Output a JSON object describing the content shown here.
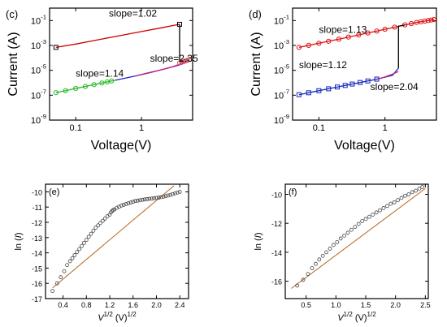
{
  "chart_data": [
    {
      "type": "line",
      "panel_label": "(c)",
      "xlabel": "Voltage(V)",
      "ylabel": "Current (A)",
      "xscale": "log",
      "yscale": "log",
      "xlim": [
        0.04,
        6
      ],
      "ylim": [
        1e-09,
        1
      ],
      "xticks": [
        0.1,
        1
      ],
      "xtick_labels": [
        "0.1",
        "1"
      ],
      "yticks": [
        1e-09,
        1e-07,
        1e-05,
        0.001,
        0.1
      ],
      "ytick_labels": [
        [
          "10",
          "-9"
        ],
        [
          "10",
          "-7"
        ],
        [
          "10",
          "-5"
        ],
        [
          "10",
          "-3"
        ],
        [
          "10",
          "-1"
        ]
      ],
      "annotations": [
        {
          "text": "slope=1.02",
          "x": 0.32,
          "y": 0.2
        },
        {
          "text": "slope=2.35",
          "x": 1.35,
          "y": 5e-05
        },
        {
          "text": "slope=1.14",
          "x": 0.1,
          "y": 3e-06
        }
      ],
      "series": [
        {
          "color": "#cc0000",
          "marker": "square",
          "markers_x": [
            0.05,
            3.8
          ],
          "x": [
            0.05,
            0.1,
            0.2,
            0.5,
            1,
            2,
            3.8
          ],
          "y": [
            0.0007,
            0.0013,
            0.0026,
            0.0065,
            0.013,
            0.026,
            0.05
          ]
        },
        {
          "color": "#000000",
          "marker": "none",
          "x": [
            3.8,
            3.8,
            4.4,
            5.0
          ],
          "y": [
            0.05,
            5e-05,
            7e-05,
            8e-05
          ]
        },
        {
          "color": "#22bb22",
          "marker": "circle",
          "markers_x": [
            0.05,
            0.07,
            0.1,
            0.14,
            0.19,
            0.25,
            0.3,
            0.35
          ],
          "x": [
            0.05,
            0.1,
            0.2,
            0.35,
            0.4
          ],
          "y": [
            1.6e-07,
            3.5e-07,
            7.5e-07,
            1.4e-06,
            1.6e-06
          ]
        },
        {
          "color": "#2222cc",
          "marker": "none",
          "x": [
            0.4,
            0.7,
            1,
            1.5,
            2,
            3,
            4,
            5.3
          ],
          "y": [
            1.6e-06,
            3e-06,
            4.5e-06,
            7.5e-06,
            1.1e-05,
            1.9e-05,
            3e-05,
            5e-05
          ]
        },
        {
          "color": "#cc2277",
          "marker": "none",
          "x": [
            0.8,
            1.2,
            2,
            3,
            4,
            5.3
          ],
          "y": [
            3.5e-06,
            6e-06,
            1.1e-05,
            2e-05,
            3.5e-05,
            6.5e-05
          ]
        },
        {
          "color": "#e06060",
          "marker": "circle",
          "markers_x": [
            3.8,
            4.2,
            4.6,
            5.0,
            5.4
          ],
          "x": [
            3.8,
            4.2,
            4.6,
            5.0,
            5.4
          ],
          "y": [
            4e-05,
            4.8e-05,
            5.6e-05,
            6.5e-05,
            7.5e-05
          ]
        }
      ]
    },
    {
      "type": "line",
      "panel_label": "(d)",
      "xlabel": "Voltage(V)",
      "ylabel": "Current (A)",
      "xscale": "log",
      "yscale": "log",
      "xlim": [
        0.04,
        6
      ],
      "ylim": [
        1e-09,
        1
      ],
      "xticks": [
        0.1,
        1
      ],
      "xtick_labels": [
        "0.1",
        "1"
      ],
      "yticks": [
        1e-09,
        1e-07,
        1e-05,
        0.001,
        0.1
      ],
      "ytick_labels": [
        [
          "10",
          "-9"
        ],
        [
          "10",
          "-7"
        ],
        [
          "10",
          "-5"
        ],
        [
          "10",
          "-3"
        ],
        [
          "10",
          "-1"
        ]
      ],
      "annotations": [
        {
          "text": "slope=1.13",
          "x": 0.1,
          "y": 0.01
        },
        {
          "text": "slope=1.12",
          "x": 0.05,
          "y": 1.5e-05
        },
        {
          "text": "slope=2.04",
          "x": 0.6,
          "y": 2.5e-07
        }
      ],
      "series": [
        {
          "color": "#dd1111",
          "marker": "circle",
          "markers_x": [
            0.05,
            0.07,
            0.1,
            0.14,
            0.2,
            0.28,
            0.4,
            0.55,
            0.75,
            1,
            1.4,
            2,
            2.5,
            3,
            3.5,
            4,
            4.5,
            5,
            5.5
          ],
          "x": [
            0.05,
            0.1,
            0.2,
            0.5,
            1,
            2,
            3,
            5.5
          ],
          "y": [
            0.0007,
            0.0015,
            0.0032,
            0.009,
            0.02,
            0.045,
            0.07,
            0.12
          ]
        },
        {
          "color": "#000000",
          "marker": "none",
          "x": [
            1.6,
            1.6,
            2.0
          ],
          "y": [
            1.5e-05,
            0.035,
            0.045
          ]
        },
        {
          "color": "#1122bb",
          "marker": "square",
          "markers_x": [
            0.05,
            0.07,
            0.1,
            0.14,
            0.19,
            0.25,
            0.32,
            0.42,
            0.55,
            0.75
          ],
          "x": [
            0.05,
            0.1,
            0.2,
            0.4,
            0.7,
            1,
            1.3,
            1.6
          ],
          "y": [
            1.1e-07,
            2.3e-07,
            4.8e-07,
            1e-06,
            1.8e-06,
            2.8e-06,
            4e-06,
            1.5e-05
          ]
        },
        {
          "color": "#cc2277",
          "marker": "none",
          "x": [
            0.8,
            1,
            1.3,
            1.6
          ],
          "y": [
            2e-06,
            3e-06,
            5e-06,
            8e-06
          ]
        }
      ]
    },
    {
      "type": "scatter",
      "panel_label": "(e)",
      "xlabel": [
        "V",
        "1/2",
        " (V)",
        "1/2"
      ],
      "ylabel": [
        "ln (",
        "I",
        ")"
      ],
      "xlim": [
        0.1,
        2.55
      ],
      "ylim": [
        -17,
        -9.5
      ],
      "xticks": [
        0.4,
        0.8,
        1.2,
        1.6,
        2.0,
        2.4
      ],
      "xtick_labels": [
        "0.4",
        "0.8",
        "1.2",
        "1.6",
        "2.0",
        "2.4"
      ],
      "yticks": [
        -17,
        -16,
        -15,
        -14,
        -13,
        -12,
        -11,
        -10
      ],
      "ytick_labels": [
        "-17",
        "-16",
        "-15",
        "-14",
        "-13",
        "-12",
        "-11",
        "-10"
      ],
      "fit_line": {
        "color": "#b5651d",
        "x": [
          0.22,
          2.3
        ],
        "y": [
          -16.3,
          -9.6
        ]
      },
      "points": {
        "x": [
          0.22,
          0.3,
          0.36,
          0.42,
          0.47,
          0.52,
          0.56,
          0.6,
          0.64,
          0.68,
          0.72,
          0.76,
          0.8,
          0.84,
          0.88,
          0.92,
          0.96,
          1.0,
          1.04,
          1.08,
          1.12,
          1.16,
          1.2,
          1.22,
          1.24,
          1.26,
          1.28,
          1.32,
          1.36,
          1.4,
          1.44,
          1.48,
          1.52,
          1.56,
          1.6,
          1.64,
          1.68,
          1.72,
          1.76,
          1.8,
          1.84,
          1.88,
          1.92,
          1.96,
          2.0,
          2.04,
          2.08,
          2.12,
          2.16,
          2.2,
          2.24,
          2.28,
          2.32,
          2.36,
          2.4
        ],
        "y": [
          -16.5,
          -16.0,
          -15.6,
          -15.2,
          -14.8,
          -14.55,
          -14.35,
          -14.15,
          -13.95,
          -13.75,
          -13.55,
          -13.35,
          -13.15,
          -12.95,
          -12.75,
          -12.55,
          -12.35,
          -12.2,
          -12.05,
          -11.9,
          -11.75,
          -11.6,
          -11.5,
          -11.35,
          -11.25,
          -11.2,
          -11.15,
          -11.05,
          -10.98,
          -10.9,
          -10.85,
          -10.8,
          -10.75,
          -10.7,
          -10.65,
          -10.6,
          -10.58,
          -10.55,
          -10.52,
          -10.5,
          -10.48,
          -10.46,
          -10.44,
          -10.42,
          -10.4,
          -10.38,
          -10.35,
          -10.32,
          -10.28,
          -10.24,
          -10.2,
          -10.15,
          -10.1,
          -10.05,
          -10.0
        ]
      }
    },
    {
      "type": "scatter",
      "panel_label": "(f)",
      "xlabel": [
        "V",
        "1/2",
        " (V)",
        "1/2"
      ],
      "ylabel": [
        "ln (",
        "I",
        ")"
      ],
      "xlim": [
        0.15,
        2.55
      ],
      "ylim": [
        -17.2,
        -9.3
      ],
      "xticks": [
        0.5,
        1.0,
        1.5,
        2.0,
        2.5
      ],
      "xtick_labels": [
        "0.5",
        "1.0",
        "1.5",
        "2.0",
        "2.5"
      ],
      "yticks": [
        -16,
        -14,
        -12,
        -10
      ],
      "ytick_labels": [
        "-16",
        "-14",
        "-12",
        "-10"
      ],
      "fit_line": {
        "color": "#b5651d",
        "x": [
          0.25,
          2.5
        ],
        "y": [
          -16.5,
          -9.6
        ]
      },
      "points": {
        "x": [
          0.35,
          0.45,
          0.53,
          0.6,
          0.66,
          0.72,
          0.78,
          0.84,
          0.9,
          0.96,
          1.02,
          1.08,
          1.14,
          1.2,
          1.26,
          1.32,
          1.38,
          1.44,
          1.5,
          1.56,
          1.62,
          1.68,
          1.74,
          1.8,
          1.86,
          1.92,
          1.98,
          2.04,
          2.1,
          2.16,
          2.22,
          2.28,
          2.34,
          2.4,
          2.45
        ],
        "y": [
          -16.3,
          -15.9,
          -15.5,
          -15.1,
          -14.8,
          -14.5,
          -14.25,
          -14.0,
          -13.75,
          -13.5,
          -13.3,
          -13.05,
          -12.85,
          -12.65,
          -12.45,
          -12.25,
          -12.05,
          -11.85,
          -11.7,
          -11.55,
          -11.4,
          -11.25,
          -11.1,
          -10.95,
          -10.8,
          -10.65,
          -10.55,
          -10.4,
          -10.25,
          -10.1,
          -10.0,
          -9.85,
          -9.75,
          -9.6,
          -9.5
        ]
      }
    }
  ]
}
